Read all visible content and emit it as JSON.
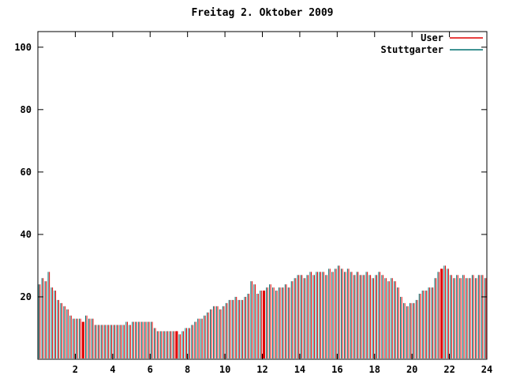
{
  "title": "Freitag 2. Oktober 2009",
  "legend": {
    "items": [
      {
        "label": "User",
        "color": "#e00000"
      },
      {
        "label": "Stuttgarter",
        "color": "#007070"
      }
    ]
  },
  "axes": {
    "x_ticks": [
      2,
      4,
      6,
      8,
      10,
      12,
      14,
      16,
      18,
      20,
      22,
      24
    ],
    "y_ticks": [
      0,
      20,
      40,
      60,
      80,
      100
    ],
    "y_tick_labels": [
      "",
      "20",
      "40",
      "60",
      "80",
      "100"
    ],
    "xlim": [
      0,
      24
    ],
    "ylim": [
      0,
      105
    ]
  },
  "colors": {
    "axis": "#000000",
    "background": "#ffffff",
    "user_bar": "#e00000",
    "stuttgarter_bar": "#007070"
  },
  "chart_data": {
    "type": "bar",
    "title": "Freitag 2. Oktober 2009",
    "xlabel": "",
    "ylabel": "",
    "x_unit": "hour of day, one sample every 10 minutes",
    "xlim": [
      0,
      24
    ],
    "ylim": [
      0,
      105
    ],
    "grid": false,
    "legend_position": "top-right",
    "series": [
      {
        "name": "User",
        "color": "#e00000",
        "values": [
          24,
          26,
          25,
          28,
          23,
          22,
          19,
          18,
          17,
          16,
          14,
          13,
          13,
          13,
          12,
          14,
          13,
          13,
          11,
          11,
          11,
          11,
          11,
          11,
          11,
          11,
          11,
          11,
          12,
          11,
          12,
          12,
          12,
          12,
          12,
          12,
          12,
          10,
          9,
          9,
          9,
          9,
          9,
          9,
          9,
          8,
          9,
          10,
          10,
          11,
          12,
          13,
          13,
          14,
          15,
          16,
          17,
          17,
          16,
          17,
          18,
          19,
          19,
          20,
          19,
          19,
          20,
          21,
          25,
          24,
          21,
          22,
          22,
          23,
          24,
          23,
          22,
          23,
          23,
          24,
          23,
          25,
          26,
          27,
          27,
          26,
          27,
          28,
          27,
          28,
          28,
          28,
          27,
          29,
          28,
          29,
          30,
          29,
          28,
          29,
          28,
          27,
          28,
          27,
          27,
          28,
          27,
          26,
          27,
          28,
          27,
          26,
          25,
          26,
          25,
          23,
          20,
          18,
          17,
          18,
          18,
          19,
          21,
          22,
          22,
          23,
          23,
          26,
          28,
          29,
          30,
          29,
          27,
          26,
          27,
          26,
          27,
          26,
          26,
          27,
          26,
          27,
          27,
          26
        ]
      },
      {
        "name": "Stuttgarter",
        "color": "#007070",
        "values": [
          24,
          26,
          25,
          28,
          23,
          22,
          19,
          18,
          17,
          16,
          14,
          13,
          13,
          13,
          12,
          14,
          13,
          13,
          11,
          11,
          11,
          11,
          11,
          11,
          11,
          11,
          11,
          11,
          12,
          11,
          12,
          12,
          12,
          12,
          12,
          12,
          12,
          10,
          9,
          9,
          9,
          9,
          9,
          9,
          9,
          8,
          9,
          10,
          10,
          11,
          12,
          13,
          13,
          14,
          15,
          16,
          17,
          17,
          16,
          17,
          18,
          19,
          19,
          20,
          19,
          19,
          20,
          21,
          25,
          24,
          21,
          22,
          22,
          23,
          24,
          23,
          22,
          23,
          23,
          24,
          23,
          25,
          26,
          27,
          27,
          26,
          27,
          28,
          27,
          28,
          28,
          28,
          27,
          29,
          28,
          29,
          30,
          29,
          28,
          29,
          28,
          27,
          28,
          27,
          27,
          28,
          27,
          26,
          27,
          28,
          27,
          26,
          25,
          26,
          25,
          23,
          20,
          18,
          17,
          18,
          18,
          19,
          21,
          22,
          22,
          23,
          23,
          26,
          28,
          29,
          30,
          29,
          27,
          26,
          27,
          26,
          27,
          26,
          26,
          27,
          26,
          27,
          27,
          26
        ]
      }
    ],
    "solid_red_marker_indices": [
      14,
      44,
      72,
      129
    ]
  }
}
